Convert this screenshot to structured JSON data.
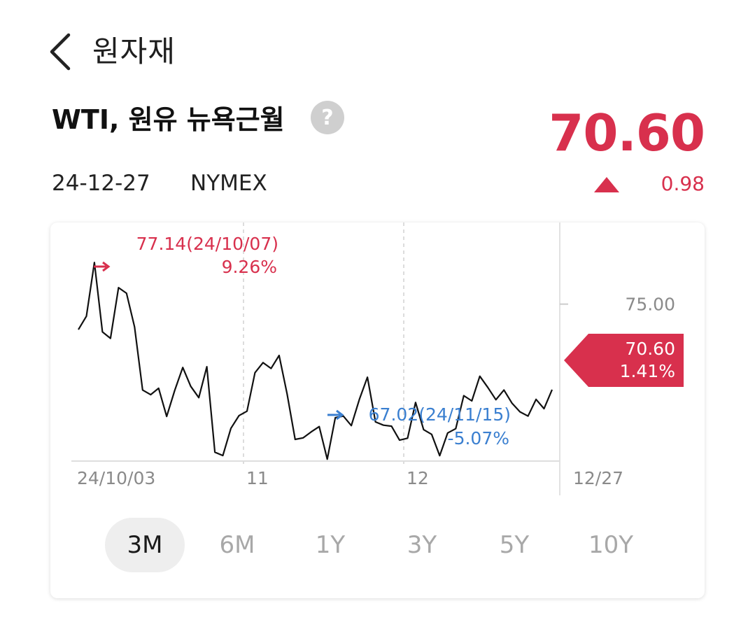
{
  "header": {
    "title": "원자재",
    "back_icon": "chevron-left-icon"
  },
  "instrument": {
    "name": "WTI, 원유 뉴욕근월",
    "help_label": "?",
    "price": "70.60",
    "date": "24-12-27",
    "exchange": "NYMEX",
    "change": "0.98",
    "direction": "up",
    "up_color": "#d8304d",
    "down_color": "#3a7fd0"
  },
  "chart_data": {
    "type": "line",
    "x": [
      "24/10/03",
      "24/10/04",
      "24/10/07",
      "24/10/08",
      "24/10/09",
      "24/10/10",
      "24/10/11",
      "24/10/14",
      "24/10/15",
      "24/10/16",
      "24/10/17",
      "24/10/18",
      "24/10/21",
      "24/10/22",
      "24/10/23",
      "24/10/24",
      "24/10/25",
      "24/10/28",
      "24/10/29",
      "24/10/30",
      "24/10/31",
      "24/11/01",
      "24/11/04",
      "24/11/05",
      "24/11/06",
      "24/11/07",
      "24/11/08",
      "24/11/11",
      "24/11/12",
      "24/11/13",
      "24/11/14",
      "24/11/15",
      "24/11/18",
      "24/11/19",
      "24/11/20",
      "24/11/21",
      "24/11/22",
      "24/11/25",
      "24/11/26",
      "24/11/27",
      "24/11/29",
      "24/12/02",
      "24/12/03",
      "24/12/04",
      "24/12/05",
      "24/12/06",
      "24/12/09",
      "24/12/10",
      "24/12/11",
      "24/12/12",
      "24/12/13",
      "24/12/16",
      "24/12/17",
      "24/12/18",
      "24/12/19",
      "24/12/20",
      "24/12/23",
      "24/12/24",
      "24/12/26",
      "24/12/27"
    ],
    "values": [
      73.69,
      74.38,
      77.14,
      73.57,
      73.24,
      75.85,
      75.56,
      73.83,
      70.58,
      70.34,
      70.67,
      69.22,
      70.56,
      71.74,
      70.77,
      70.19,
      71.78,
      67.38,
      67.21,
      68.61,
      69.26,
      69.49,
      71.47,
      71.99,
      71.69,
      72.36,
      70.38,
      68.04,
      68.12,
      68.43,
      68.7,
      67.02,
      69.16,
      69.24,
      68.75,
      70.1,
      71.24,
      68.94,
      68.77,
      68.72,
      68.0,
      68.1,
      69.94,
      68.54,
      68.3,
      67.2,
      68.37,
      68.59,
      70.29,
      70.02,
      71.29,
      70.71,
      70.08,
      70.58,
      69.91,
      69.46,
      69.24,
      70.1,
      69.62,
      70.6
    ],
    "ylim": [
      64.8,
      79.2
    ],
    "y_tick_label": "75.00",
    "y_tick_value": 75.0,
    "x_tick_labels": [
      "24/10/03",
      "11",
      "12",
      "12/27"
    ],
    "max_label": "77.14(24/10/07)",
    "max_pct": "9.26%",
    "min_label": "67.02(24/11/15)",
    "min_pct": "-5.07%",
    "last_label": "70.60",
    "last_pct": "1.41%",
    "grid": true
  },
  "periods": [
    {
      "label": "3M",
      "active": true
    },
    {
      "label": "6M",
      "active": false
    },
    {
      "label": "1Y",
      "active": false
    },
    {
      "label": "3Y",
      "active": false
    },
    {
      "label": "5Y",
      "active": false
    },
    {
      "label": "10Y",
      "active": false
    }
  ]
}
